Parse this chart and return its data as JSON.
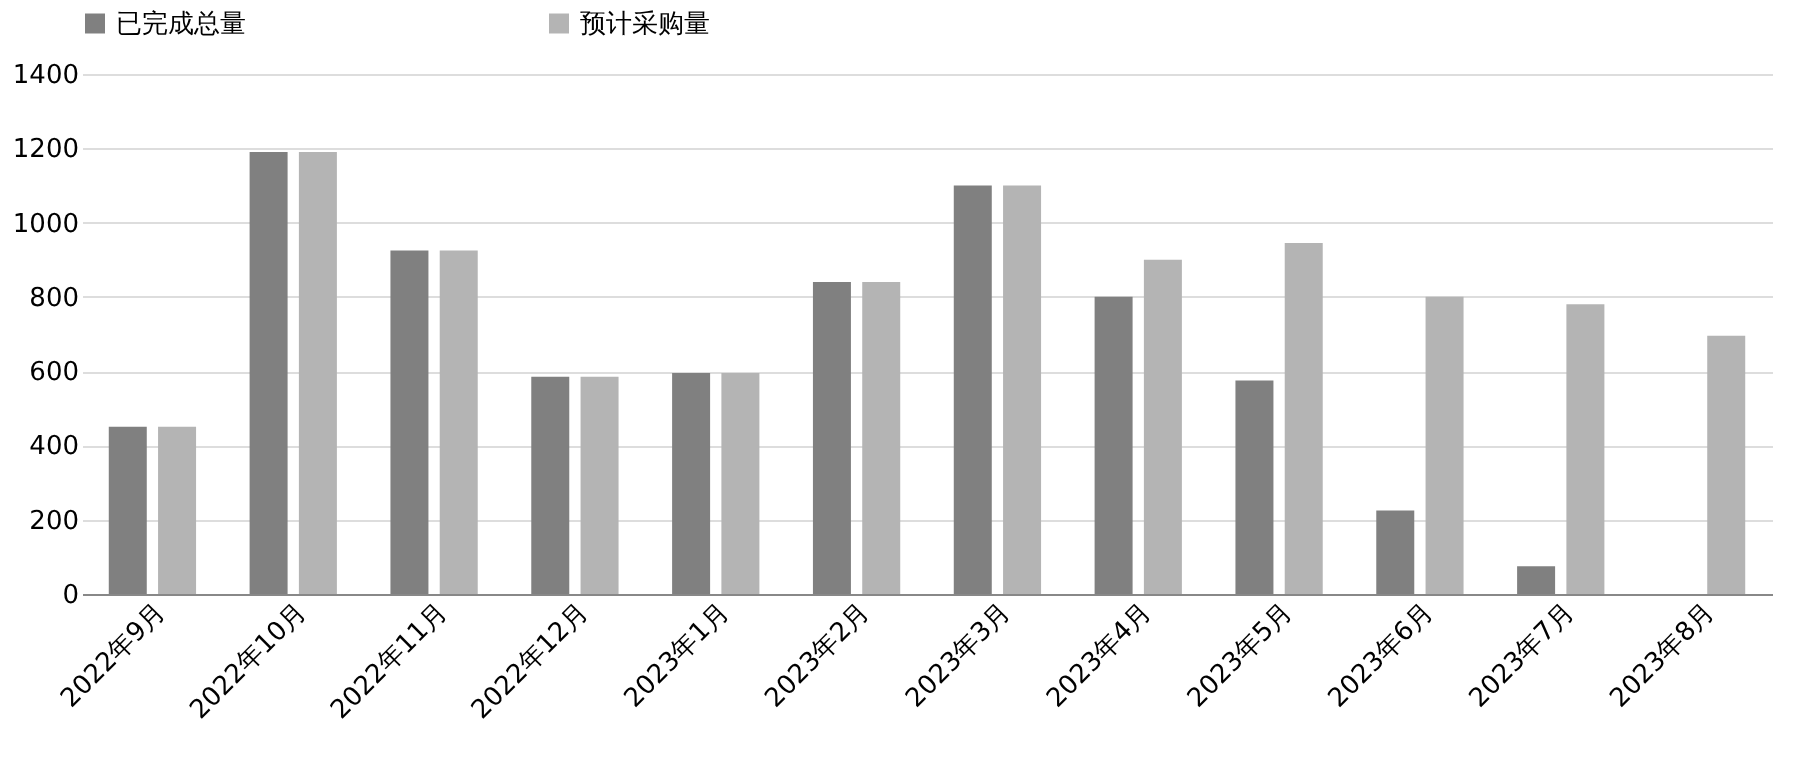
{
  "chart_data": {
    "type": "bar",
    "categories": [
      "2022年9月",
      "2022年10月",
      "2022年11月",
      "2022年12月",
      "2023年1月",
      "2023年2月",
      "2023年3月",
      "2023年4月",
      "2023年5月",
      "2023年6月",
      "2023年7月",
      "2023年8月"
    ],
    "series": [
      {
        "name": "已完成总量",
        "color": "#808080",
        "values": [
          450,
          1190,
          925,
          585,
          595,
          840,
          1100,
          800,
          575,
          225,
          75,
          null
        ]
      },
      {
        "name": "预计采购量",
        "color": "#b4b4b4",
        "values": [
          450,
          1190,
          925,
          585,
          595,
          840,
          1100,
          900,
          945,
          800,
          780,
          695
        ]
      }
    ],
    "ylim": [
      0,
      1400
    ],
    "yticks": [
      0,
      200,
      400,
      600,
      800,
      1000,
      1200,
      1400
    ],
    "grid": "y",
    "legend": "top"
  }
}
